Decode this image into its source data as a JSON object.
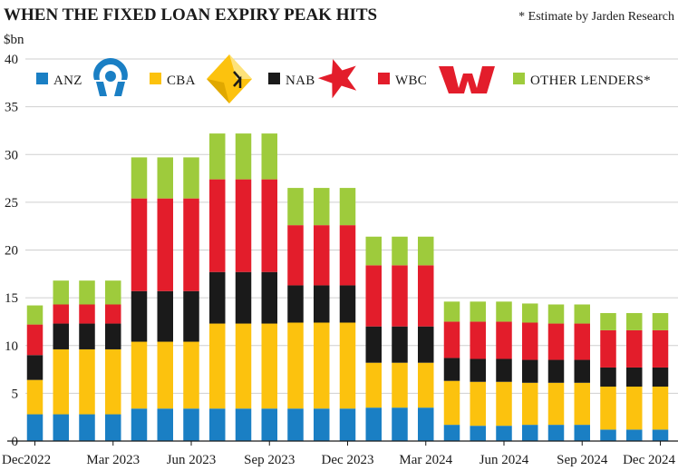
{
  "chart_data": {
    "type": "bar",
    "stacked": true,
    "title": "WHEN THE FIXED LOAN EXPIRY PEAK HITS",
    "note": "* Estimate by Jarden Research",
    "ylabel": "$bn",
    "ylim": [
      0,
      40
    ],
    "yticks": [
      0,
      5,
      10,
      15,
      20,
      25,
      30,
      35,
      40
    ],
    "grid": true,
    "legend_position": "top",
    "x_tick_labels": [
      "Dec2022",
      "Mar 2023",
      "Jun 2023",
      "Sep 2023",
      "Dec 2023",
      "Mar 2024",
      "Jun 2024",
      "Sep 2024",
      "Dec 2024"
    ],
    "x_tick_positions": [
      0,
      3,
      6,
      9,
      12,
      15,
      18,
      21,
      24
    ],
    "categories": [
      "Dec 2022",
      "Jan 2023",
      "Feb 2023",
      "Mar 2023",
      "Apr 2023",
      "May 2023",
      "Jun 2023",
      "Jul 2023",
      "Aug 2023",
      "Sep 2023",
      "Oct 2023",
      "Nov 2023",
      "Dec 2023",
      "Jan 2024",
      "Feb 2024",
      "Mar 2024",
      "Apr 2024",
      "May 2024",
      "Jun 2024",
      "Jul 2024",
      "Aug 2024",
      "Sep 2024",
      "Oct 2024",
      "Nov 2024",
      "Dec 2024"
    ],
    "series": [
      {
        "name": "ANZ",
        "color": "#1a7fc4",
        "icon": "anz-logo-icon",
        "values": [
          2.8,
          2.8,
          2.8,
          2.8,
          3.4,
          3.4,
          3.4,
          3.4,
          3.4,
          3.4,
          3.4,
          3.4,
          3.4,
          3.5,
          3.5,
          3.5,
          1.7,
          1.6,
          1.6,
          1.7,
          1.7,
          1.7,
          1.2,
          1.2,
          1.2
        ]
      },
      {
        "name": "CBA",
        "color": "#fcc20e",
        "icon": "cba-logo-icon",
        "values": [
          3.6,
          6.8,
          6.8,
          6.8,
          7.0,
          7.0,
          7.0,
          8.9,
          8.9,
          8.9,
          9.0,
          9.0,
          9.0,
          4.7,
          4.7,
          4.7,
          4.6,
          4.6,
          4.6,
          4.4,
          4.4,
          4.4,
          4.5,
          4.5,
          4.5
        ]
      },
      {
        "name": "NAB",
        "color": "#1a1a1a",
        "icon": "nab-star-icon",
        "values": [
          2.6,
          2.7,
          2.7,
          2.7,
          5.3,
          5.3,
          5.3,
          5.4,
          5.4,
          5.4,
          3.9,
          3.9,
          3.9,
          3.8,
          3.8,
          3.8,
          2.4,
          2.4,
          2.4,
          2.4,
          2.4,
          2.4,
          2.0,
          2.0,
          2.0
        ]
      },
      {
        "name": "WBC",
        "color": "#e31d2b",
        "icon": "westpac-w-icon",
        "values": [
          3.2,
          2.0,
          2.0,
          2.0,
          9.7,
          9.7,
          9.7,
          9.7,
          9.7,
          9.7,
          6.3,
          6.3,
          6.3,
          6.4,
          6.4,
          6.4,
          3.8,
          3.9,
          3.9,
          3.9,
          3.8,
          3.8,
          3.9,
          3.9,
          3.9
        ]
      },
      {
        "name": "OTHER LENDERS*",
        "color": "#9ecb3c",
        "icon": "",
        "values": [
          2.0,
          2.5,
          2.5,
          2.5,
          4.3,
          4.3,
          4.3,
          4.8,
          4.8,
          4.8,
          3.9,
          3.9,
          3.9,
          3.0,
          3.0,
          3.0,
          2.1,
          2.1,
          2.1,
          2.0,
          2.0,
          2.0,
          1.8,
          1.8,
          1.8
        ]
      }
    ]
  }
}
